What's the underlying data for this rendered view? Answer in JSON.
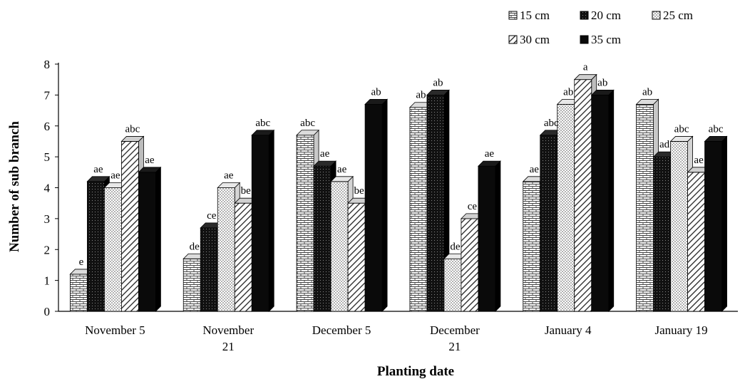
{
  "chart_data": {
    "type": "bar",
    "xlabel": "Planting date",
    "ylabel": "Number of sub branch",
    "ylim": [
      0,
      8
    ],
    "yticks": [
      0,
      1,
      2,
      3,
      4,
      5,
      6,
      7,
      8
    ],
    "grid": false,
    "legend_position": "top-right",
    "categories": [
      [
        "November 5"
      ],
      [
        "November",
        "21"
      ],
      [
        "December 5"
      ],
      [
        "December",
        "21"
      ],
      [
        "January 4"
      ],
      [
        "January 19"
      ]
    ],
    "series": [
      {
        "name": "15 cm",
        "pattern": "brick",
        "values": [
          1.2,
          1.7,
          5.7,
          6.6,
          4.2,
          6.7
        ],
        "labels": [
          "e",
          "de",
          "abc",
          "ab",
          "ae",
          "ab"
        ]
      },
      {
        "name": "20 cm",
        "pattern": "dark-dots",
        "values": [
          4.2,
          2.7,
          4.7,
          7.0,
          5.7,
          5.0
        ],
        "labels": [
          "ae",
          "ce",
          "ae",
          "ab",
          "abc",
          "ad"
        ]
      },
      {
        "name": "25 cm",
        "pattern": "light-dots",
        "values": [
          4.0,
          4.0,
          4.2,
          1.7,
          6.7,
          5.5
        ],
        "labels": [
          "ae",
          "ae",
          "ae",
          "de",
          "ab",
          "abc"
        ]
      },
      {
        "name": "30 cm",
        "pattern": "diagonal",
        "values": [
          5.5,
          3.5,
          3.5,
          3.0,
          7.5,
          4.5
        ],
        "labels": [
          "abc",
          "be",
          "be",
          "ce",
          "a",
          "ae"
        ]
      },
      {
        "name": "35 cm",
        "pattern": "solid",
        "values": [
          4.5,
          5.7,
          6.7,
          4.7,
          7.0,
          5.5
        ],
        "labels": [
          "ae",
          "abc",
          "ab",
          "ae",
          "ab",
          "abc"
        ]
      }
    ]
  }
}
